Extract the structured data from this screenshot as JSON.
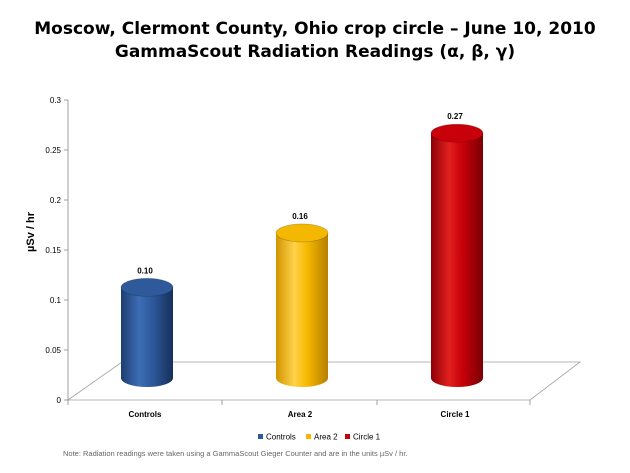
{
  "chart_data": {
    "type": "bar",
    "title_lines": [
      "Moscow, Clermont County, Ohio crop circle – June 10, 2010",
      "GammaScout Radiation Readings (α, β, γ)"
    ],
    "ylabel": "µSv / hr",
    "xlabel": "",
    "categories": [
      "Controls",
      "Area 2",
      "Circle 1"
    ],
    "values": [
      0.1,
      0.16,
      0.27
    ],
    "data_labels": [
      "0.10",
      "0.16",
      "0.27"
    ],
    "ylim": [
      0,
      0.3
    ],
    "yticks": [
      "0",
      "0.05",
      "0.1",
      "0.15",
      "0.2",
      "0.25",
      "0.3"
    ],
    "bar_shape": "cylinder",
    "legend": {
      "placement": "bottom",
      "entries": [
        "Controls",
        "Area 2",
        "Circle 1"
      ]
    },
    "colors": [
      "#2e5a9c",
      "#f5b800",
      "#c8000a"
    ],
    "grid": false,
    "footnote": "Note: Radiation readings were taken using a GammaScout Gieger Counter and are in the units µSv / hr."
  }
}
